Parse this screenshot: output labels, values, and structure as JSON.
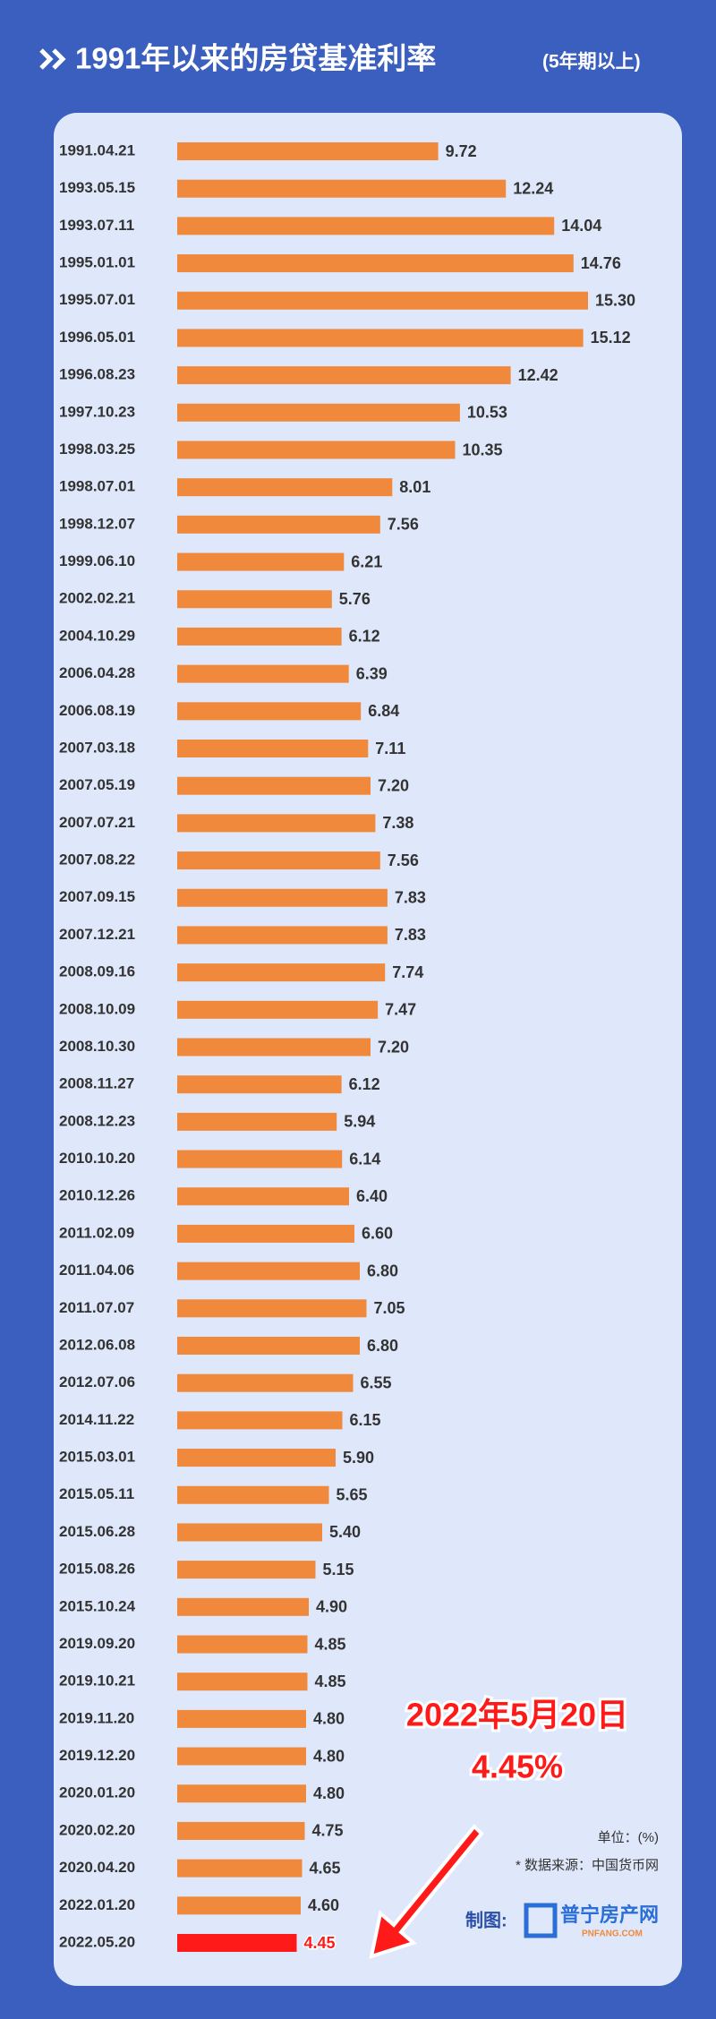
{
  "chart_data": {
    "type": "hbar",
    "title": "1991年以来的房贷基准利率",
    "subtitle": "(5年期以上)",
    "categories": [
      "1991.04.21",
      "1993.05.15",
      "1993.07.11",
      "1995.01.01",
      "1995.07.01",
      "1996.05.01",
      "1996.08.23",
      "1997.10.23",
      "1998.03.25",
      "1998.07.01",
      "1998.12.07",
      "1999.06.10",
      "2002.02.21",
      "2004.10.29",
      "2006.04.28",
      "2006.08.19",
      "2007.03.18",
      "2007.05.19",
      "2007.07.21",
      "2007.08.22",
      "2007.09.15",
      "2007.12.21",
      "2008.09.16",
      "2008.10.09",
      "2008.10.30",
      "2008.11.27",
      "2008.12.23",
      "2010.10.20",
      "2010.12.26",
      "2011.02.09",
      "2011.04.06",
      "2011.07.07",
      "2012.06.08",
      "2012.07.06",
      "2014.11.22",
      "2015.03.01",
      "2015.05.11",
      "2015.06.28",
      "2015.08.26",
      "2015.10.24",
      "2019.09.20",
      "2019.10.21",
      "2019.11.20",
      "2019.12.20",
      "2020.01.20",
      "2020.02.20",
      "2020.04.20",
      "2022.01.20",
      "2022.05.20"
    ],
    "values": [
      9.72,
      12.24,
      14.04,
      14.76,
      15.3,
      15.12,
      12.42,
      10.53,
      10.35,
      8.01,
      7.56,
      6.21,
      5.76,
      6.12,
      6.39,
      6.84,
      7.11,
      7.2,
      7.38,
      7.56,
      7.83,
      7.83,
      7.74,
      7.47,
      7.2,
      6.12,
      5.94,
      6.14,
      6.4,
      6.6,
      6.8,
      7.05,
      6.8,
      6.55,
      6.15,
      5.9,
      5.65,
      5.4,
      5.15,
      4.9,
      4.85,
      4.85,
      4.8,
      4.8,
      4.8,
      4.75,
      4.65,
      4.6,
      4.45
    ],
    "value_labels": [
      "9.72",
      "12.24",
      "14.04",
      "14.76",
      "15.30",
      "15.12",
      "12.42",
      "10.53",
      "10.35",
      "8.01",
      "7.56",
      "6.21",
      "5.76",
      "6.12",
      "6.39",
      "6.84",
      "7.11",
      "7.20",
      "7.38",
      "7.56",
      "7.83",
      "7.83",
      "7.74",
      "7.47",
      "7.20",
      "6.12",
      "5.94",
      "6.14",
      "6.40",
      "6.60",
      "6.80",
      "7.05",
      "6.80",
      "6.55",
      "6.15",
      "5.90",
      "5.65",
      "5.40",
      "5.15",
      "4.90",
      "4.85",
      "4.85",
      "4.80",
      "4.80",
      "4.80",
      "4.75",
      "4.65",
      "4.60",
      "4.45"
    ],
    "color": "#f0893b",
    "highlight_color": "#ff1a1a",
    "annotation": {
      "date": "2022年5月20日",
      "value": "4.45%"
    },
    "unit": "单位：(%)",
    "source": "* 数据来源：中国货币网",
    "credit": "制图:",
    "logo": {
      "name": "普宁房产网",
      "site": "PNFANG.COM"
    }
  }
}
